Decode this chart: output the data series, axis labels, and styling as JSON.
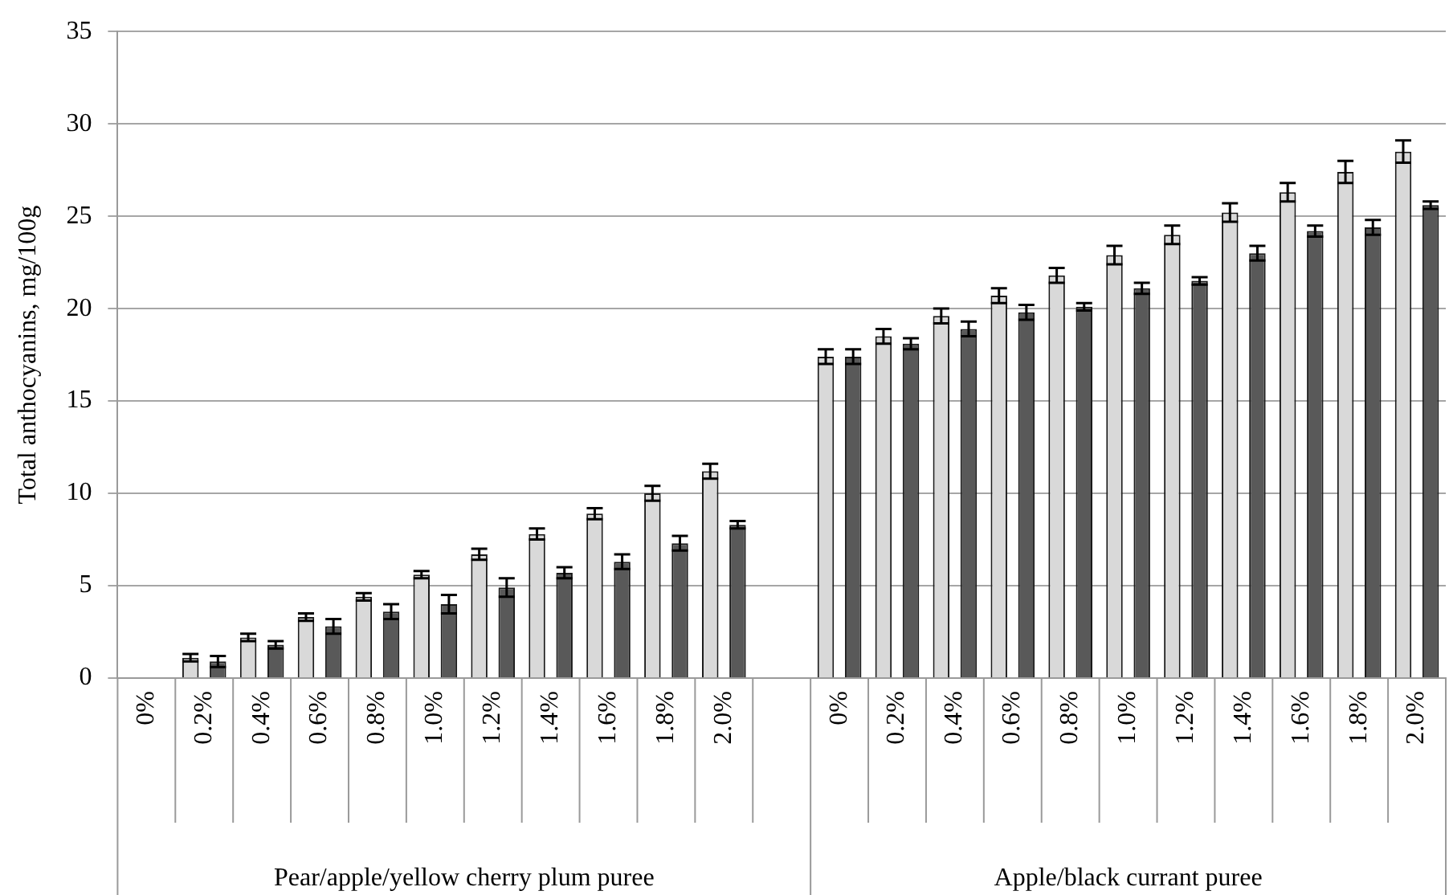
{
  "chart_data": {
    "type": "bar",
    "ylabel": "Total anthocyanins, mg/100g",
    "categories": [
      "0%",
      "0.2%",
      "0.4%",
      "0.6%",
      "0.8%",
      "1.0%",
      "1.2%",
      "1.4%",
      "1.6%",
      "1.8%",
      "2.0%",
      null,
      "0%",
      "0.2%",
      "0.4%",
      "0.6%",
      "0.8%",
      "1.0%",
      "1.2%",
      "1.4%",
      "1.6%",
      "1.8%",
      "2.0%"
    ],
    "series": [
      {
        "color": "#d9d9d9",
        "values": [
          0,
          1.1,
          2.2,
          3.3,
          4.4,
          5.6,
          6.7,
          7.8,
          8.9,
          10.0,
          11.2,
          null,
          17.4,
          18.5,
          19.6,
          20.7,
          21.8,
          22.9,
          24.0,
          25.2,
          26.3,
          27.4,
          28.5
        ],
        "errors": [
          null,
          0.2,
          0.2,
          0.2,
          0.2,
          0.2,
          0.3,
          0.3,
          0.3,
          0.4,
          0.4,
          null,
          0.4,
          0.4,
          0.4,
          0.4,
          0.4,
          0.5,
          0.5,
          0.5,
          0.5,
          0.6,
          0.6
        ]
      },
      {
        "color": "#595959",
        "values": [
          0,
          0.9,
          1.8,
          2.8,
          3.6,
          4.0,
          4.9,
          5.7,
          6.3,
          7.3,
          8.3,
          null,
          17.4,
          18.1,
          18.9,
          19.8,
          20.1,
          21.1,
          21.5,
          23.0,
          24.2,
          24.4,
          25.6
        ],
        "errors": [
          null,
          0.3,
          0.2,
          0.4,
          0.4,
          0.5,
          0.5,
          0.3,
          0.4,
          0.4,
          0.2,
          null,
          0.4,
          0.3,
          0.4,
          0.4,
          0.2,
          0.3,
          0.2,
          0.4,
          0.3,
          0.4,
          0.2
        ]
      }
    ],
    "ylim": [
      0,
      35
    ],
    "yticks": [
      0,
      5,
      10,
      15,
      20,
      25,
      30,
      35
    ],
    "grid": "y",
    "legend": false,
    "annotations": [
      "Pear/apple/yellow cherry plum puree",
      "Apple/black currant puree"
    ]
  }
}
